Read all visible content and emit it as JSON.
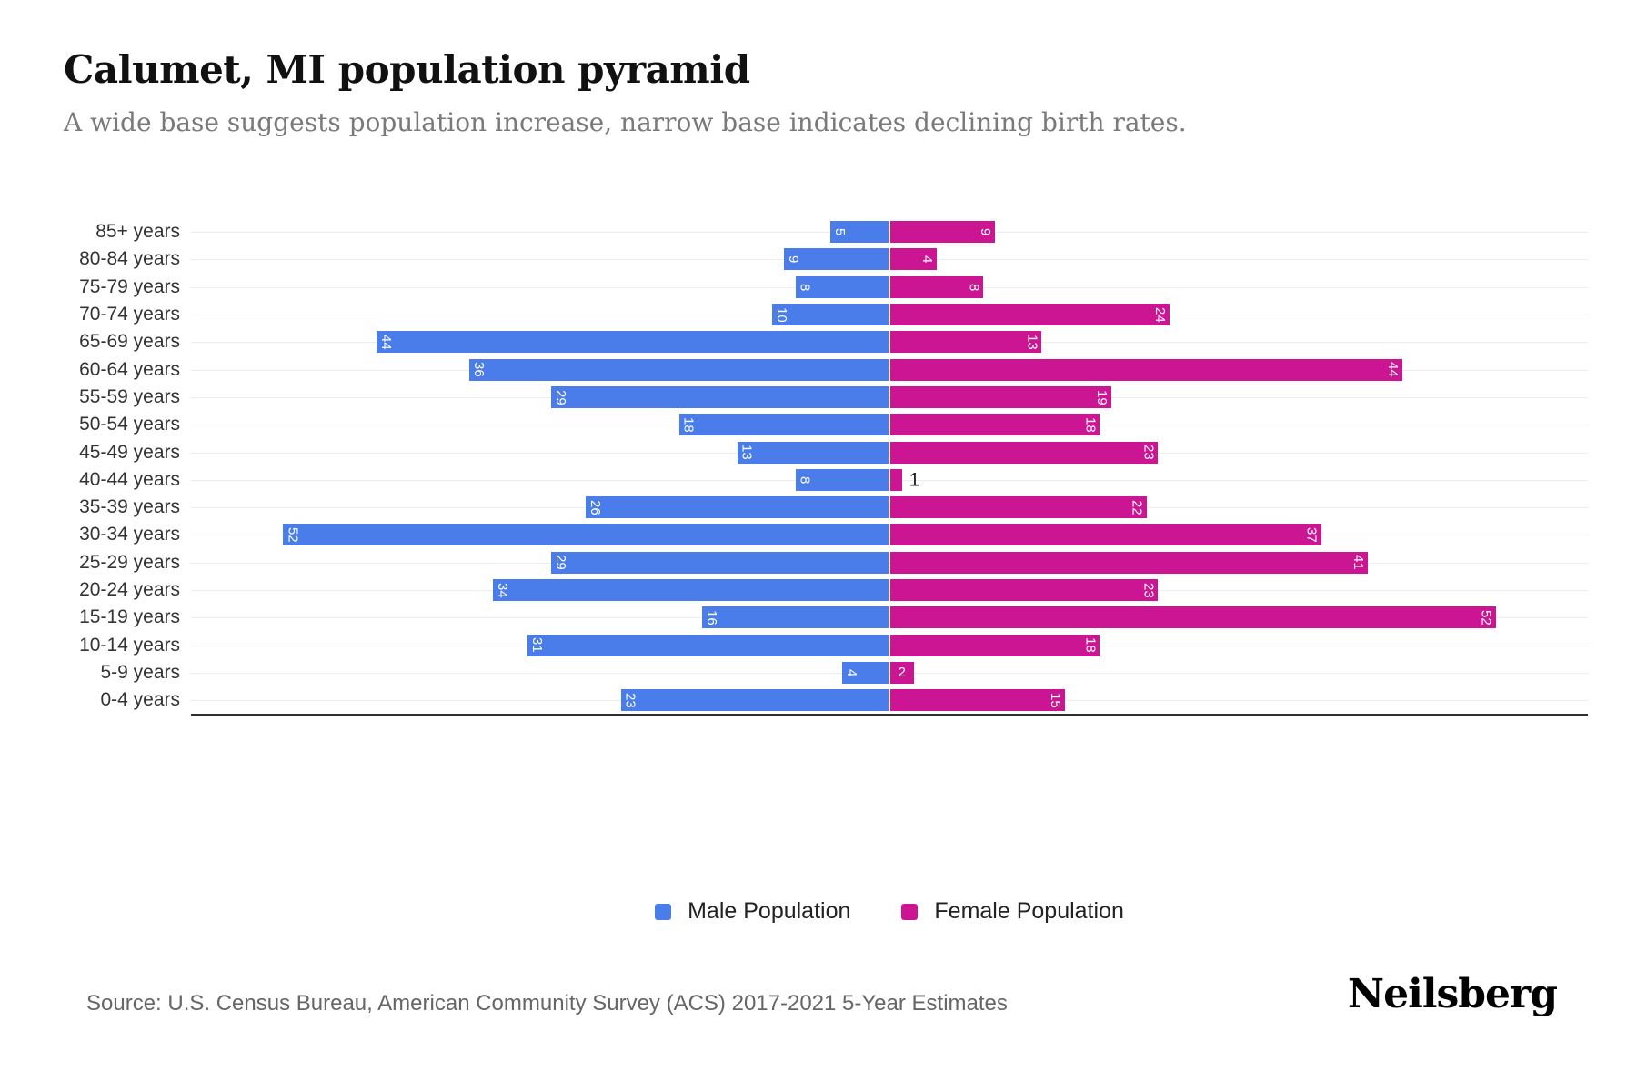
{
  "title": "Calumet, MI population pyramid",
  "subtitle": "A wide base suggests population increase, narrow base indicates declining birth rates.",
  "source": "Source: U.S. Census Bureau, American Community Survey (ACS) 2017-2021 5-Year Estimates",
  "brand": "Neilsberg",
  "legend": [
    {
      "label": "Male Population",
      "color": "#4A7DE9"
    },
    {
      "label": "Female Population",
      "color": "#CC1593"
    }
  ],
  "colors": {
    "male_bar": "#4A7DE9",
    "female_bar": "#CC1593",
    "bar_label": "#ffffff",
    "outside_label": "#222222",
    "gridline": "#ededed",
    "axis_line": "#2f2f2f",
    "title": "#111111",
    "subtitle": "#7a7a7a",
    "axis_labels": "#333333"
  },
  "chart_data": {
    "type": "bar",
    "variant": "population-pyramid",
    "title": "Calumet, MI population pyramid",
    "categories": [
      "85+ years",
      "80-84 years",
      "75-79 years",
      "70-74 years",
      "65-69 years",
      "60-64 years",
      "55-59 years",
      "50-54 years",
      "45-49 years",
      "40-44 years",
      "35-39 years",
      "30-34 years",
      "25-29 years",
      "20-24 years",
      "15-19 years",
      "10-14 years",
      "5-9 years",
      "0-4 years"
    ],
    "series": [
      {
        "name": "Male Population",
        "side": "left",
        "color": "#4A7DE9",
        "values": [
          5,
          9,
          8,
          10,
          44,
          36,
          29,
          18,
          13,
          8,
          26,
          52,
          29,
          34,
          16,
          31,
          4,
          23
        ]
      },
      {
        "name": "Female Population",
        "side": "right",
        "color": "#CC1593",
        "values": [
          9,
          4,
          8,
          24,
          13,
          44,
          19,
          18,
          23,
          1,
          22,
          37,
          41,
          23,
          52,
          18,
          2,
          15
        ]
      }
    ],
    "units_per_side": 60,
    "xlim": [
      -60,
      60
    ],
    "grid": "horizontal",
    "legend_position": "bottom-center",
    "bar_labels": "inside-ends, rotated 90deg, white; tiny values upright or outside in dark text"
  }
}
